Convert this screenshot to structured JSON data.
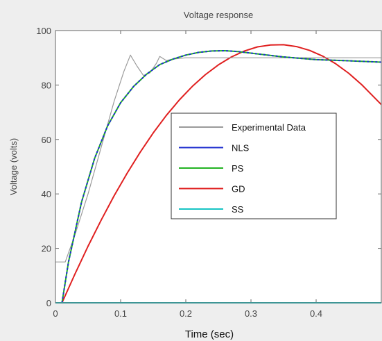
{
  "chart_data": {
    "type": "line",
    "title": "Voltage response",
    "xlabel": "Time (sec)",
    "ylabel": "Voltage (volts)",
    "xlim": [
      0,
      0.5
    ],
    "ylim": [
      0,
      100
    ],
    "xticks": [
      0,
      0.1,
      0.2,
      0.3,
      0.4
    ],
    "xtick_labels": [
      "0",
      "0.1",
      "0.2",
      "0.3",
      "0.4"
    ],
    "yticks": [
      0,
      20,
      40,
      60,
      80,
      100
    ],
    "ytick_labels": [
      "0",
      "20",
      "40",
      "60",
      "80",
      "100"
    ],
    "grid": false,
    "legend": {
      "position": "center-right"
    },
    "series": [
      {
        "name": "Experimental Data",
        "color": "#9a9a9a",
        "x": [
          0,
          0.01,
          0.015,
          0.03,
          0.05,
          0.07,
          0.09,
          0.105,
          0.115,
          0.125,
          0.135,
          0.145,
          0.155,
          0.16,
          0.17,
          0.18,
          0.2,
          0.25,
          0.3,
          0.35,
          0.4,
          0.45,
          0.5
        ],
        "y": [
          15,
          15,
          15,
          25,
          40,
          57,
          74,
          85,
          91,
          87,
          83.5,
          84.5,
          88,
          90.5,
          89,
          89.5,
          90,
          90,
          90,
          90,
          90,
          90,
          90
        ]
      },
      {
        "name": "NLS",
        "color": "#1f2fcf",
        "x": [
          0.01,
          0.02,
          0.04,
          0.06,
          0.08,
          0.1,
          0.12,
          0.14,
          0.16,
          0.18,
          0.2,
          0.22,
          0.24,
          0.26,
          0.28,
          0.3,
          0.35,
          0.4,
          0.45,
          0.5
        ],
        "y": [
          0,
          15,
          37,
          53,
          65,
          73.5,
          79.5,
          84,
          87.5,
          89.5,
          91,
          92,
          92.5,
          92.6,
          92.3,
          91.7,
          90.3,
          89.3,
          88.9,
          88.4
        ]
      },
      {
        "name": "PS",
        "color": "#22b322",
        "x": [
          0.01,
          0.02,
          0.04,
          0.06,
          0.08,
          0.1,
          0.12,
          0.14,
          0.16,
          0.18,
          0.2,
          0.22,
          0.24,
          0.26,
          0.28,
          0.3,
          0.35,
          0.4,
          0.45,
          0.5
        ],
        "y": [
          0,
          15,
          37,
          53,
          65,
          73.5,
          79.5,
          84,
          87.5,
          89.5,
          91,
          92,
          92.5,
          92.6,
          92.3,
          91.7,
          90.3,
          89.3,
          88.9,
          88.4
        ]
      },
      {
        "name": "GD",
        "color": "#e02020",
        "x": [
          0.01,
          0.03,
          0.05,
          0.07,
          0.09,
          0.11,
          0.13,
          0.15,
          0.17,
          0.19,
          0.21,
          0.23,
          0.25,
          0.27,
          0.29,
          0.31,
          0.33,
          0.35,
          0.37,
          0.39,
          0.41,
          0.43,
          0.45,
          0.47,
          0.5
        ],
        "y": [
          0,
          10.6,
          20.8,
          30.3,
          39.3,
          47.6,
          55.3,
          62.4,
          68.8,
          74.5,
          79.5,
          83.8,
          87.4,
          90.3,
          92.5,
          94,
          94.7,
          94.8,
          94.1,
          92.7,
          90.6,
          87.8,
          84.3,
          80.1,
          72.8
        ]
      },
      {
        "name": "SS",
        "color": "#17c4c4",
        "x": [
          0,
          0.5
        ],
        "y": [
          0,
          0
        ]
      }
    ]
  }
}
